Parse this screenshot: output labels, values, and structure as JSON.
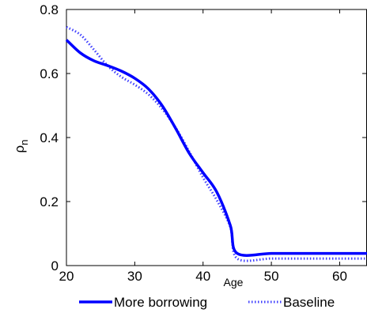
{
  "chart_data": {
    "type": "line",
    "title": "",
    "xlabel": "Age",
    "ylabel": "ρ_n",
    "ylabel_main": "ρ",
    "ylabel_sub": "n",
    "xlim": [
      20,
      64
    ],
    "ylim": [
      0,
      0.8
    ],
    "xticks": [
      20,
      30,
      40,
      50,
      60
    ],
    "yticks": [
      0,
      0.2,
      0.4,
      0.6,
      0.8
    ],
    "xtick_labels": [
      "20",
      "30",
      "40",
      "50",
      "60"
    ],
    "ytick_labels": [
      "0",
      "0.2",
      "0.4",
      "0.6",
      "0.8"
    ],
    "grid": false,
    "legend_position": "bottom",
    "series": [
      {
        "name": "More borrowing",
        "color": "#0000ff",
        "style": "solid",
        "x": [
          20,
          22,
          24,
          26,
          28,
          30,
          32,
          34,
          36,
          38,
          40,
          42,
          44,
          45,
          50,
          55,
          60,
          64
        ],
        "y": [
          0.705,
          0.665,
          0.64,
          0.625,
          0.608,
          0.585,
          0.552,
          0.5,
          0.428,
          0.35,
          0.29,
          0.23,
          0.125,
          0.038,
          0.038,
          0.038,
          0.038,
          0.038
        ]
      },
      {
        "name": "Baseline",
        "color": "#4040ff",
        "style": "dotted",
        "x": [
          20,
          22,
          24,
          26,
          28,
          30,
          32,
          34,
          36,
          38,
          40,
          42,
          44,
          45,
          50,
          55,
          60,
          64
        ],
        "y": [
          0.745,
          0.722,
          0.675,
          0.625,
          0.59,
          0.565,
          0.535,
          0.49,
          0.43,
          0.355,
          0.275,
          0.205,
          0.12,
          0.022,
          0.022,
          0.022,
          0.022,
          0.022
        ]
      }
    ]
  }
}
